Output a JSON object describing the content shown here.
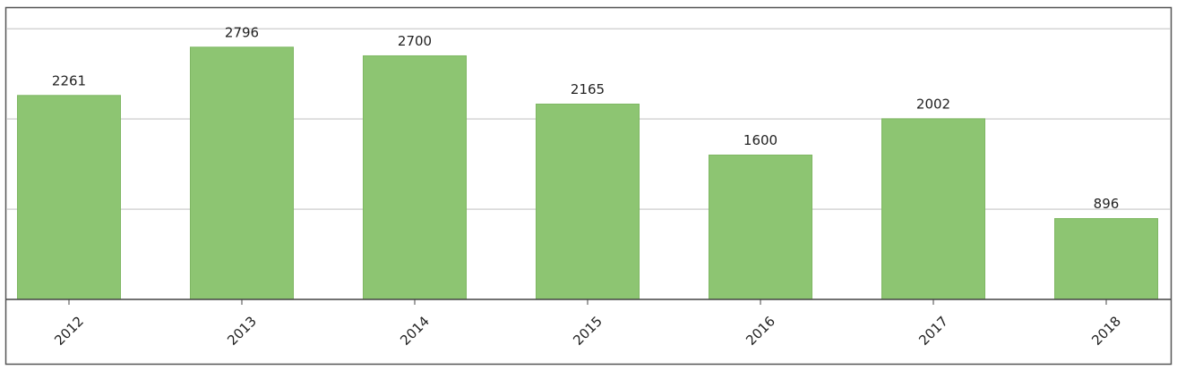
{
  "chart_data": {
    "type": "bar",
    "categories": [
      "2012",
      "2013",
      "2014",
      "2015",
      "2016",
      "2017",
      "2018"
    ],
    "values": [
      2261,
      2796,
      2700,
      2165,
      1600,
      2002,
      896
    ],
    "color": "#8dc572",
    "ylim": [
      0,
      3200
    ],
    "grid_lines": [
      1000,
      2000,
      3000
    ]
  }
}
